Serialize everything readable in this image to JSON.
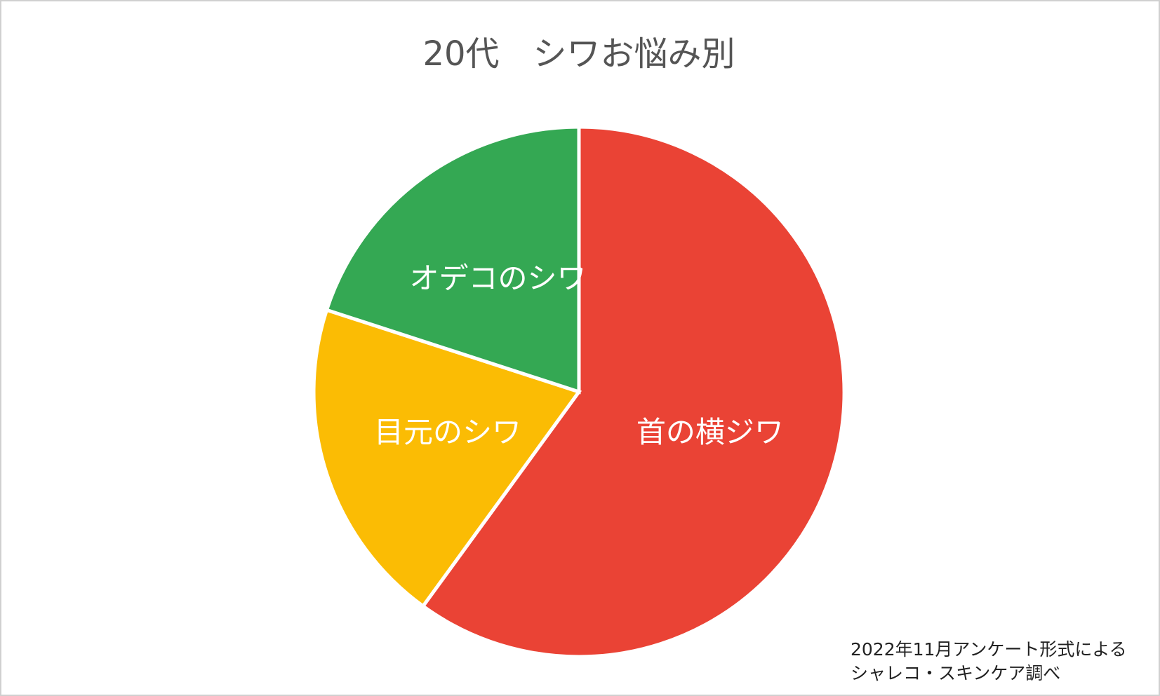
{
  "chart_data": {
    "type": "pie",
    "title": "20代　シワお悩み別",
    "categories": [
      "首の横ジワ",
      "目元のシワ",
      "オデコのシワ"
    ],
    "values": [
      60,
      20,
      20
    ],
    "colors": [
      "#ea4335",
      "#fbbc04",
      "#34a853"
    ],
    "footnote": [
      "2022年11月アンケート形式による",
      "シャレコ・スキンケア調べ"
    ]
  }
}
